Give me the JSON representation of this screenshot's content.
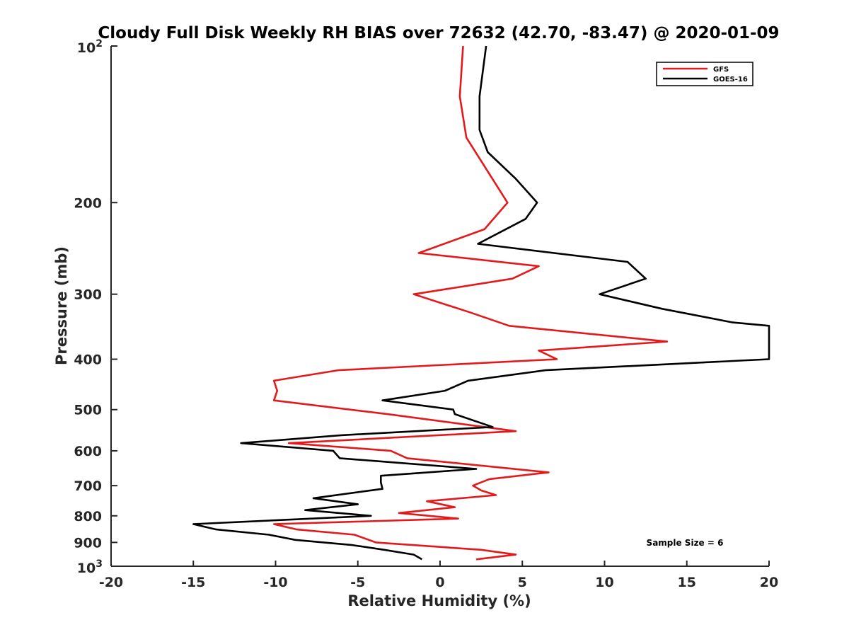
{
  "chart_data": {
    "type": "line",
    "title": "Cloudy Full Disk Weekly RH BIAS over 72632 (42.70, -83.47) @ 2020-01-09",
    "xlabel": "Relative Humidity (%)",
    "ylabel": "Pressure (mb)",
    "xlim": [
      -20,
      20
    ],
    "ylim": [
      1000,
      100
    ],
    "y_scale": "log",
    "y_reversed": true,
    "grid": false,
    "x_ticks": [
      -20,
      -15,
      -10,
      -5,
      0,
      5,
      10,
      15,
      20
    ],
    "x_tick_labels": [
      "-20",
      "-15",
      "-10",
      "-5",
      "0",
      "5",
      "10",
      "15",
      "20"
    ],
    "y_ticks": [
      100,
      200,
      300,
      400,
      500,
      600,
      700,
      800,
      900,
      1000
    ],
    "y_tick_labels": [
      "",
      "200",
      "300",
      "400",
      "500",
      "600",
      "700",
      "800",
      "900",
      ""
    ],
    "y_tick_power_labels": [
      {
        "value": 100,
        "base": "10",
        "exponent": "2"
      },
      {
        "value": 1000,
        "base": "10",
        "exponent": "3"
      }
    ],
    "legend": {
      "position": "top-right"
    },
    "annotation": "Sample Size = 6",
    "series": [
      {
        "name": "GFS",
        "color": "#e31a1c",
        "points": [
          [
            1.4,
            100
          ],
          [
            1.2,
            125
          ],
          [
            1.6,
            150
          ],
          [
            4.1,
            200
          ],
          [
            2.7,
            225
          ],
          [
            -1.3,
            250
          ],
          [
            6.0,
            265
          ],
          [
            4.4,
            280
          ],
          [
            -1.6,
            300
          ],
          [
            1.8,
            325
          ],
          [
            4.2,
            345
          ],
          [
            13.8,
            370
          ],
          [
            6.0,
            385
          ],
          [
            7.1,
            400
          ],
          [
            -6.2,
            420
          ],
          [
            -10.1,
            440
          ],
          [
            -9.9,
            460
          ],
          [
            -10.1,
            480
          ],
          [
            -3.2,
            510
          ],
          [
            4.6,
            550
          ],
          [
            -9.2,
            580
          ],
          [
            -3.0,
            600
          ],
          [
            -2.0,
            620
          ],
          [
            6.6,
            660
          ],
          [
            3.0,
            680
          ],
          [
            2.0,
            700
          ],
          [
            2.5,
            715
          ],
          [
            3.4,
            730
          ],
          [
            -0.8,
            750
          ],
          [
            0.9,
            770
          ],
          [
            -2.5,
            790
          ],
          [
            1.1,
            810
          ],
          [
            -10.1,
            830
          ],
          [
            -8.7,
            850
          ],
          [
            -5.2,
            870
          ],
          [
            -3.9,
            900
          ],
          [
            2.5,
            930
          ],
          [
            4.6,
            950
          ],
          [
            2.2,
            970
          ]
        ]
      },
      {
        "name": "GOES-16",
        "color": "#000000",
        "points": [
          [
            2.8,
            100
          ],
          [
            2.4,
            125
          ],
          [
            2.4,
            145
          ],
          [
            2.9,
            160
          ],
          [
            4.6,
            180
          ],
          [
            5.9,
            200
          ],
          [
            5.2,
            215
          ],
          [
            2.3,
            240
          ],
          [
            11.4,
            260
          ],
          [
            12.5,
            280
          ],
          [
            9.7,
            300
          ],
          [
            13.5,
            320
          ],
          [
            17.8,
            340
          ],
          [
            20.0,
            345
          ],
          [
            20.0,
            400
          ],
          [
            6.4,
            420
          ],
          [
            1.7,
            440
          ],
          [
            0.3,
            460
          ],
          [
            -3.5,
            480
          ],
          [
            0.8,
            500
          ],
          [
            0.9,
            510
          ],
          [
            3.2,
            540
          ],
          [
            -6.0,
            560
          ],
          [
            -12.1,
            580
          ],
          [
            -6.5,
            600
          ],
          [
            -6.1,
            620
          ],
          [
            2.2,
            650
          ],
          [
            -3.6,
            670
          ],
          [
            -3.6,
            690
          ],
          [
            -3.5,
            710
          ],
          [
            -7.7,
            740
          ],
          [
            -5.0,
            760
          ],
          [
            -8.2,
            780
          ],
          [
            -4.2,
            800
          ],
          [
            -15.0,
            830
          ],
          [
            -13.6,
            850
          ],
          [
            -10.4,
            870
          ],
          [
            -8.8,
            890
          ],
          [
            -5.4,
            910
          ],
          [
            -3.4,
            930
          ],
          [
            -1.6,
            950
          ],
          [
            -1.1,
            970
          ]
        ]
      }
    ]
  }
}
